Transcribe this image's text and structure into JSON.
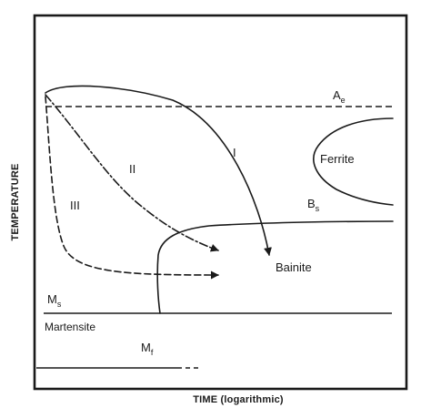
{
  "diagram": {
    "axes": {
      "x_label": "TIME (logarithmic)",
      "y_label": "TEMPERATURE"
    },
    "lines": {
      "ae": {
        "main": "A",
        "sub": "e"
      },
      "bs": {
        "main": "B",
        "sub": "s"
      },
      "ms": {
        "main": "M",
        "sub": "s"
      },
      "mf": {
        "main": "M",
        "sub": "f"
      }
    },
    "regions": {
      "ferrite": "Ferrite",
      "bainite": "Bainite",
      "martensite": "Martensite"
    },
    "paths": {
      "path_1": "I",
      "path_2": "II",
      "path_3": "III"
    }
  }
}
